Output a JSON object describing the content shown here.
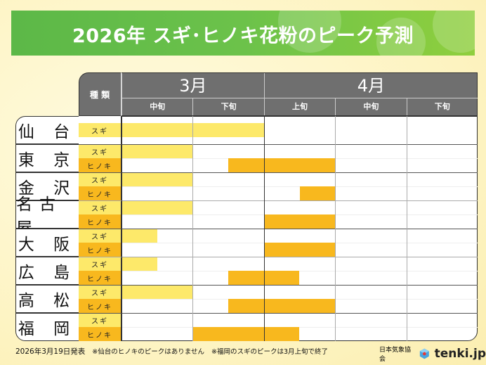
{
  "title": "2026年 スギ･ヒノキ花粉のピーク予測",
  "chart_data": {
    "type": "table",
    "title": "2026年 スギ･ヒノキ花粉のピーク予測",
    "type_header": "種 類",
    "months": [
      {
        "label": "3月",
        "periods": [
          "中旬",
          "下旬"
        ]
      },
      {
        "label": "4月",
        "periods": [
          "上旬",
          "中旬",
          "下旬"
        ]
      }
    ],
    "period_unit_note": "start/end in decades from 3月中旬 start (0) to 4月下旬 end (5)",
    "cities": [
      {
        "name": "仙 台",
        "rows": [
          {
            "type": "スギ",
            "kind": "sugi",
            "start": 0,
            "end": 2
          }
        ]
      },
      {
        "name": "東 京",
        "rows": [
          {
            "type": "スギ",
            "kind": "sugi",
            "start": 0,
            "end": 1
          },
          {
            "type": "ヒノキ",
            "kind": "hinoki",
            "start": 1.5,
            "end": 3
          }
        ]
      },
      {
        "name": "金 沢",
        "rows": [
          {
            "type": "スギ",
            "kind": "sugi",
            "start": 0,
            "end": 1
          },
          {
            "type": "ヒノキ",
            "kind": "hinoki",
            "start": 2.5,
            "end": 3
          }
        ]
      },
      {
        "name": "名古屋",
        "rows": [
          {
            "type": "スギ",
            "kind": "sugi",
            "start": 0,
            "end": 1
          },
          {
            "type": "ヒノキ",
            "kind": "hinoki",
            "start": 2,
            "end": 3
          }
        ]
      },
      {
        "name": "大 阪",
        "rows": [
          {
            "type": "スギ",
            "kind": "sugi",
            "start": 0,
            "end": 0.5
          },
          {
            "type": "ヒノキ",
            "kind": "hinoki",
            "start": 2,
            "end": 3
          }
        ]
      },
      {
        "name": "広 島",
        "rows": [
          {
            "type": "スギ",
            "kind": "sugi",
            "start": 0,
            "end": 0.5
          },
          {
            "type": "ヒノキ",
            "kind": "hinoki",
            "start": 1.5,
            "end": 2.5
          }
        ]
      },
      {
        "name": "高 松",
        "rows": [
          {
            "type": "スギ",
            "kind": "sugi",
            "start": 0,
            "end": 1
          },
          {
            "type": "ヒノキ",
            "kind": "hinoki",
            "start": 1.5,
            "end": 3
          }
        ]
      },
      {
        "name": "福 岡",
        "rows": [
          {
            "type": "スギ",
            "kind": "sugi",
            "start": null,
            "end": null
          },
          {
            "type": "ヒノキ",
            "kind": "hinoki",
            "start": 1,
            "end": 2.5
          }
        ]
      }
    ],
    "colors": {
      "sugi": "#fde96a",
      "hinoki": "#f8b81e",
      "header": "#6f6f6f",
      "banner": "#6cc24a"
    }
  },
  "footer": {
    "date": "2026年3月19日発表",
    "note1": "※仙台のヒノキのピークはありません",
    "note2": "※福岡のスギのピークは3月上旬で終了"
  },
  "brand": {
    "org": "日本気象協会",
    "site": "tenki.jp"
  }
}
